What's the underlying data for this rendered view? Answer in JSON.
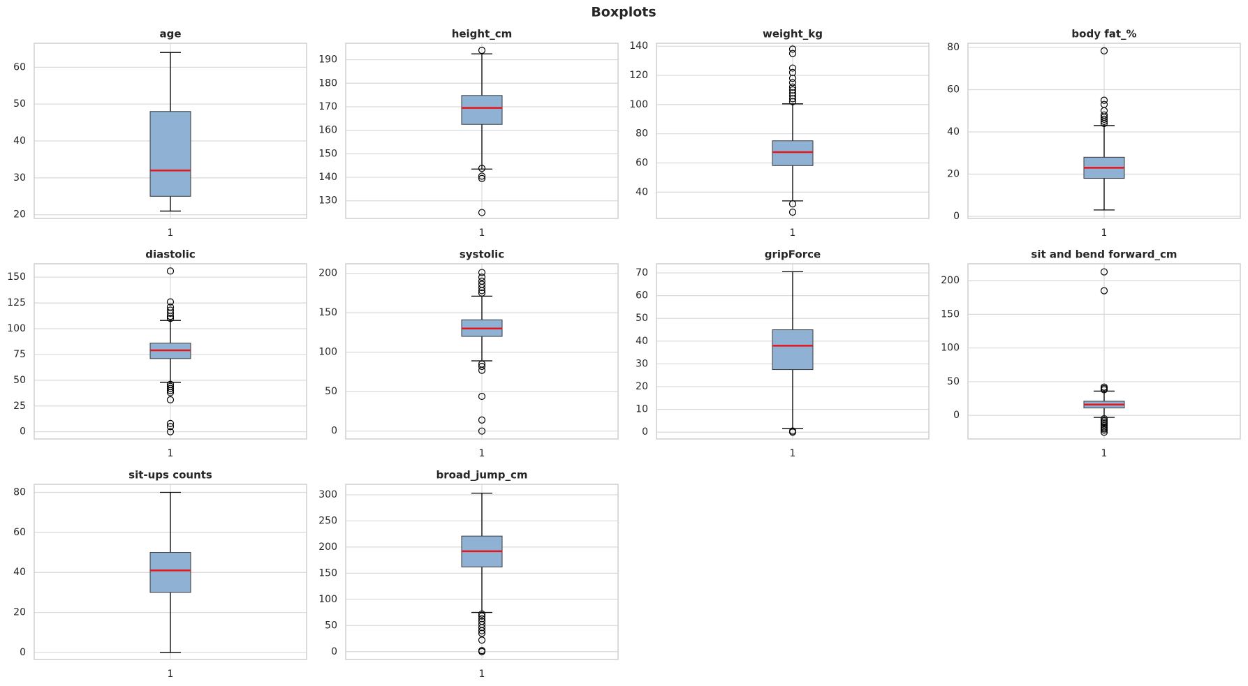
{
  "title": "Boxplots",
  "chart_data": [
    {
      "type": "box",
      "title": "age",
      "categories": [
        "1"
      ],
      "ylim": [
        19,
        66.5
      ],
      "yticks": [
        20,
        30,
        40,
        50,
        60
      ],
      "grid": true,
      "color": "#8fb1d3",
      "median_color": "#e8141b",
      "boxes": [
        {
          "whislo": 21,
          "q1": 25,
          "median": 32,
          "q3": 48,
          "whishi": 64,
          "outliers": []
        }
      ]
    },
    {
      "type": "box",
      "title": "height_cm",
      "categories": [
        "1"
      ],
      "ylim": [
        122.5,
        197
      ],
      "yticks": [
        130,
        140,
        150,
        160,
        170,
        180,
        190
      ],
      "grid": true,
      "color": "#8fb1d3",
      "median_color": "#e8141b",
      "boxes": [
        {
          "whislo": 143.5,
          "q1": 162.5,
          "median": 169.5,
          "q3": 174.8,
          "whishi": 192.5,
          "outliers": [
            194,
            143.8,
            140.5,
            139.5,
            125
          ]
        }
      ]
    },
    {
      "type": "box",
      "title": "weight_kg",
      "categories": [
        "1"
      ],
      "ylim": [
        22,
        142
      ],
      "yticks": [
        40,
        60,
        80,
        100,
        120,
        140
      ],
      "grid": true,
      "color": "#8fb1d3",
      "median_color": "#e8141b",
      "boxes": [
        {
          "whislo": 34,
          "q1": 58.2,
          "median": 67.4,
          "q3": 75.2,
          "whishi": 100.5,
          "outliers": [
            32,
            26.3,
            102,
            104,
            106,
            108,
            110,
            112,
            115,
            118,
            122,
            125,
            135,
            138
          ]
        }
      ]
    },
    {
      "type": "box",
      "title": "body fat_%",
      "categories": [
        "1"
      ],
      "ylim": [
        -1,
        82
      ],
      "yticks": [
        0,
        20,
        40,
        60,
        80
      ],
      "grid": true,
      "color": "#8fb1d3",
      "median_color": "#e8141b",
      "boxes": [
        {
          "whislo": 3,
          "q1": 18,
          "median": 23,
          "q3": 28,
          "whishi": 43,
          "outliers": [
            44,
            45,
            46,
            47,
            48,
            50,
            53,
            55,
            78.4
          ]
        }
      ]
    },
    {
      "type": "box",
      "title": "diastolic",
      "categories": [
        "1"
      ],
      "ylim": [
        -7,
        163
      ],
      "yticks": [
        0,
        25,
        50,
        75,
        100,
        125,
        150
      ],
      "grid": true,
      "color": "#8fb1d3",
      "median_color": "#e8141b",
      "boxes": [
        {
          "whislo": 48,
          "q1": 71,
          "median": 79,
          "q3": 86,
          "whishi": 108,
          "outliers": [
            110,
            112,
            115,
            118,
            121,
            126,
            156,
            46,
            44,
            42,
            40,
            38,
            31,
            8,
            5,
            0
          ]
        }
      ]
    },
    {
      "type": "box",
      "title": "systolic",
      "categories": [
        "1"
      ],
      "ylim": [
        -10,
        212
      ],
      "yticks": [
        0,
        50,
        100,
        150,
        200
      ],
      "grid": true,
      "color": "#8fb1d3",
      "median_color": "#e8141b",
      "boxes": [
        {
          "whislo": 89,
          "q1": 120,
          "median": 130,
          "q3": 141,
          "whishi": 171,
          "outliers": [
            175,
            178,
            182,
            186,
            190,
            195,
            201,
            85,
            82,
            77,
            44,
            14,
            0
          ]
        }
      ]
    },
    {
      "type": "box",
      "title": "gripForce",
      "categories": [
        "1"
      ],
      "ylim": [
        -3,
        74
      ],
      "yticks": [
        0,
        10,
        20,
        30,
        40,
        50,
        60,
        70
      ],
      "grid": true,
      "color": "#8fb1d3",
      "median_color": "#e8141b",
      "boxes": [
        {
          "whislo": 1.5,
          "q1": 27.5,
          "median": 38,
          "q3": 45,
          "whishi": 70.5,
          "outliers": [
            0.5,
            0
          ]
        }
      ]
    },
    {
      "type": "box",
      "title": "sit and bend forward_cm",
      "categories": [
        "1"
      ],
      "ylim": [
        -35,
        225
      ],
      "yticks": [
        0,
        50,
        100,
        150,
        200
      ],
      "grid": true,
      "color": "#8fb1d3",
      "median_color": "#e8141b",
      "boxes": [
        {
          "whislo": -3,
          "q1": 11,
          "median": 16,
          "q3": 21,
          "whishi": 36,
          "outliers": [
            38,
            40,
            42,
            185,
            213,
            -5,
            -8,
            -10,
            -12,
            -15,
            -18,
            -20,
            -22,
            -25
          ]
        }
      ]
    },
    {
      "type": "box",
      "title": "sit-ups counts",
      "categories": [
        "1"
      ],
      "ylim": [
        -3.5,
        84
      ],
      "yticks": [
        0,
        20,
        40,
        60,
        80
      ],
      "grid": true,
      "color": "#8fb1d3",
      "median_color": "#e8141b",
      "boxes": [
        {
          "whislo": 0,
          "q1": 30,
          "median": 41,
          "q3": 50,
          "whishi": 80,
          "outliers": []
        }
      ]
    },
    {
      "type": "box",
      "title": "broad_jump_cm",
      "categories": [
        "1"
      ],
      "ylim": [
        -15,
        320
      ],
      "yticks": [
        0,
        50,
        100,
        150,
        200,
        250,
        300
      ],
      "grid": true,
      "color": "#8fb1d3",
      "median_color": "#e8141b",
      "boxes": [
        {
          "whislo": 75,
          "q1": 162,
          "median": 192,
          "q3": 221,
          "whishi": 303,
          "outliers": [
            72,
            68,
            63,
            58,
            52,
            46,
            40,
            35,
            22,
            2,
            0
          ]
        }
      ]
    }
  ]
}
